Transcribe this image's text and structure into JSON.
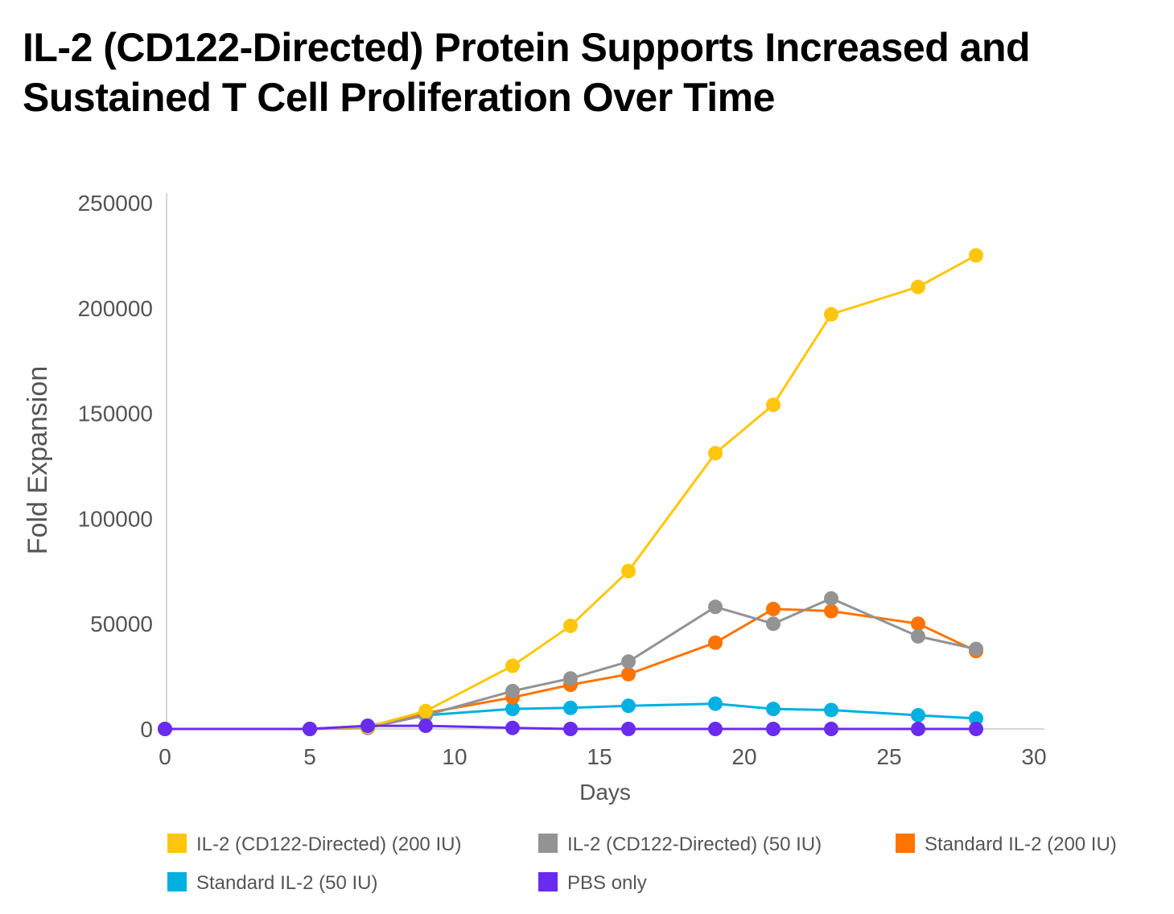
{
  "title_line1": "IL-2 (CD122-Directed) Protein Supports Increased and",
  "title_line2": "Sustained T Cell Proliferation Over Time",
  "chart_data": {
    "type": "line",
    "title": "IL-2 (CD122-Directed) Protein Supports Increased and Sustained T Cell Proliferation Over Time",
    "xlabel": "Days",
    "ylabel": "Fold Expansion",
    "xlim": [
      0,
      30
    ],
    "ylim": [
      0,
      250000
    ],
    "xticks": [
      0,
      5,
      10,
      15,
      20,
      25,
      30
    ],
    "yticks": [
      0,
      50000,
      100000,
      150000,
      200000,
      250000
    ],
    "xtick_labels": [
      "0",
      "5",
      "10",
      "15",
      "20",
      "25",
      "30"
    ],
    "ytick_labels": [
      "0",
      "50000",
      "100000",
      "150000",
      "200000",
      "250000"
    ],
    "grid": false,
    "legend_position": "bottom",
    "x": [
      0,
      5,
      7,
      9,
      12,
      14,
      16,
      19,
      21,
      23,
      26,
      28
    ],
    "series": [
      {
        "name": "IL-2 (CD122-Directed) (200 IU)",
        "color": "#FFC60B",
        "values": [
          0,
          0,
          1000,
          8500,
          30000,
          49000,
          75000,
          131000,
          154000,
          197000,
          210000,
          225000
        ]
      },
      {
        "name": "IL-2 (CD122-Directed) (50 IU)",
        "color": "#939393",
        "values": [
          0,
          0,
          500,
          6500,
          18000,
          24000,
          32000,
          58000,
          50000,
          62000,
          44000,
          38000
        ]
      },
      {
        "name": "Standard IL-2 (200 IU)",
        "color": "#FF7300",
        "values": [
          0,
          0,
          500,
          7500,
          15000,
          21000,
          26000,
          41000,
          57000,
          56000,
          50000,
          37000
        ]
      },
      {
        "name": "Standard IL-2 (50 IU)",
        "color": "#00B0E0",
        "values": [
          0,
          0,
          1500,
          6500,
          9500,
          10000,
          11000,
          12000,
          9500,
          9000,
          6500,
          5000
        ]
      },
      {
        "name": "PBS only",
        "color": "#6A2BF0",
        "values": [
          0,
          0,
          1500,
          1500,
          500,
          0,
          0,
          0,
          0,
          0,
          0,
          0
        ]
      }
    ]
  }
}
